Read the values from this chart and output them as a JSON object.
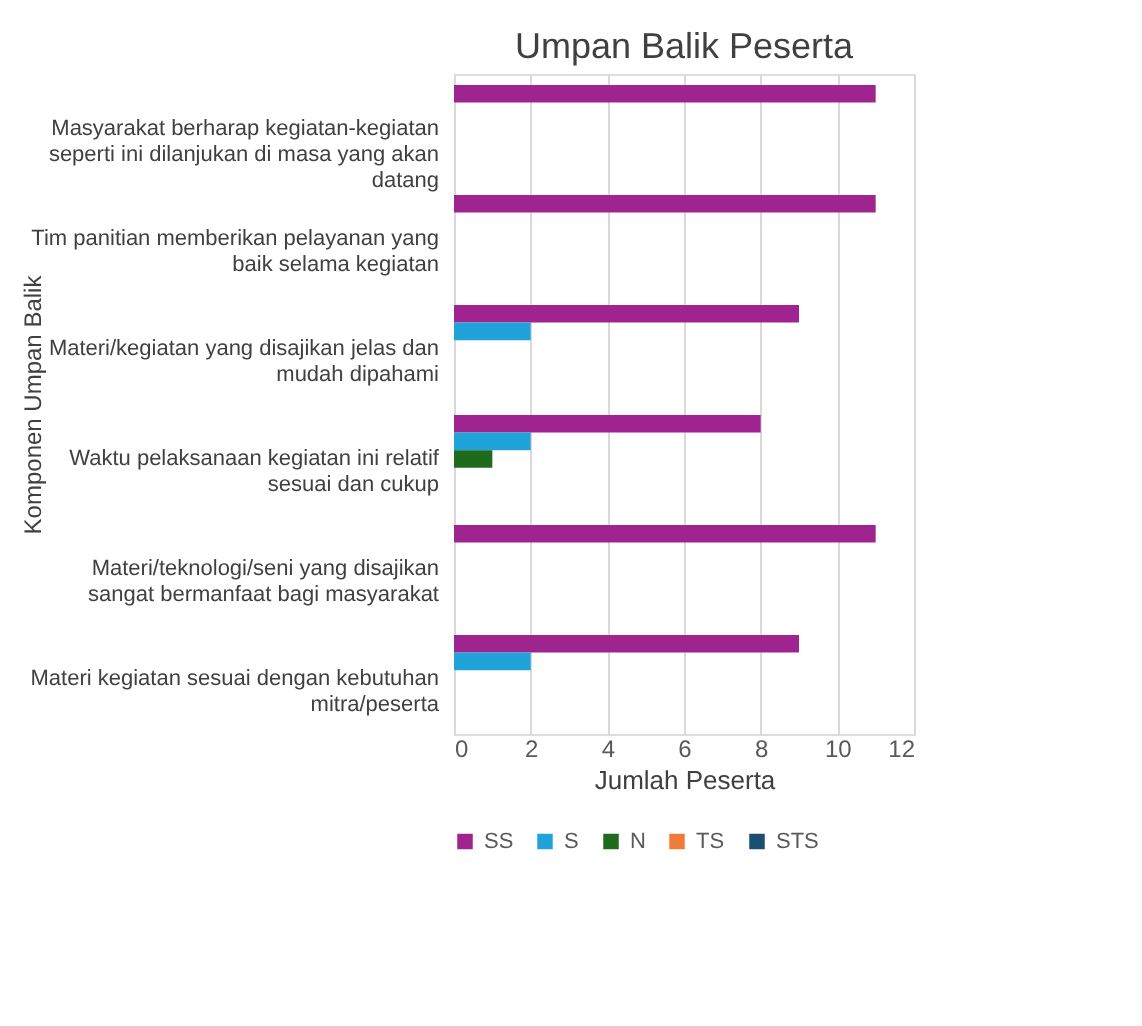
{
  "chart_data": {
    "type": "bar",
    "orientation": "horizontal",
    "title": "Umpan Balik Peserta",
    "xlabel": "Jumlah Peserta",
    "ylabel": "Komponen Umpan Balik",
    "categories": [
      "Masyarakat berharap kegiatan-kegiatan seperti ini dilanjukan di masa yang akan datang",
      "Tim panitian memberikan pelayanan yang baik selama kegiatan",
      "Materi/kegiatan yang disajikan jelas dan mudah dipahami",
      "Waktu pelaksanaan kegiatan ini relatif sesuai dan cukup",
      "Materi/teknologi/seni yang disajikan sangat bermanfaat bagi masyarakat",
      "Materi kegiatan sesuai dengan kebutuhan mitra/peserta"
    ],
    "series": [
      {
        "name": "SS",
        "color": "#a0248f",
        "values": [
          11,
          11,
          9,
          8,
          11,
          9
        ]
      },
      {
        "name": "S",
        "color": "#1fa3d9",
        "values": [
          0,
          0,
          2,
          2,
          0,
          2
        ]
      },
      {
        "name": "N",
        "color": "#1e6b1e",
        "values": [
          0,
          0,
          0,
          1,
          0,
          0
        ]
      },
      {
        "name": "TS",
        "color": "#f07c3c",
        "values": [
          0,
          0,
          0,
          0,
          0,
          0
        ]
      },
      {
        "name": "STS",
        "color": "#1b4f72",
        "values": [
          0,
          0,
          0,
          0,
          0,
          0
        ]
      }
    ],
    "xlim": [
      0,
      12
    ],
    "xticks": [
      0,
      2,
      4,
      6,
      8,
      10,
      12
    ],
    "grid": "x",
    "legend": "bottom"
  }
}
